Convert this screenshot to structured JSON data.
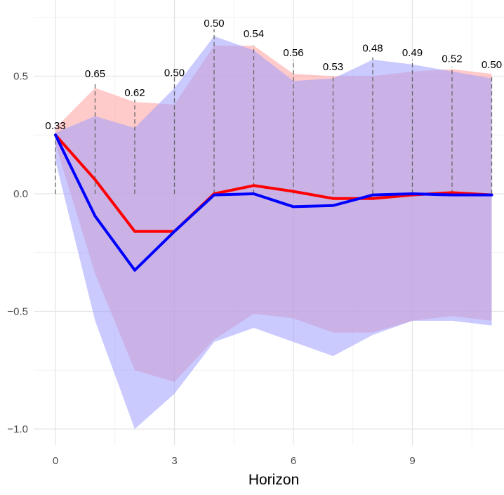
{
  "chart_data": {
    "type": "line",
    "title": "",
    "xlabel": "Horizon",
    "ylabel": "",
    "xlim": [
      -0.55,
      11.3
    ],
    "ylim": [
      -1.05,
      0.76
    ],
    "x_ticks": [
      0,
      3,
      6,
      9
    ],
    "x_tick_labels": [
      "0",
      "3",
      "6",
      "9"
    ],
    "y_ticks": [
      -1.0,
      -0.5,
      0.0,
      0.5
    ],
    "y_tick_labels": [
      "-1.0",
      "-0.5",
      "0.0",
      "0.5"
    ],
    "grid": true,
    "legend": "none",
    "x": [
      0,
      1,
      2,
      3,
      4,
      5,
      6,
      7,
      8,
      9,
      10,
      11
    ],
    "series": [
      {
        "color": "#ff0000",
        "values": [
          0.25,
          0.06,
          -0.16,
          -0.16,
          0.0,
          0.035,
          0.01,
          -0.02,
          -0.02,
          -0.005,
          0.005,
          -0.005
        ],
        "band_upper": [
          0.28,
          0.45,
          0.39,
          0.38,
          0.63,
          0.63,
          0.51,
          0.5,
          0.5,
          0.52,
          0.53,
          0.51
        ],
        "band_lower": [
          0.21,
          -0.34,
          -0.75,
          -0.8,
          -0.62,
          -0.51,
          -0.53,
          -0.59,
          -0.59,
          -0.54,
          -0.52,
          -0.54
        ],
        "band_color": "#ff9f9f"
      },
      {
        "color": "#0000ff",
        "values": [
          0.25,
          -0.095,
          -0.325,
          -0.16,
          -0.005,
          0.0,
          -0.055,
          -0.05,
          -0.005,
          0.0,
          -0.005,
          -0.005
        ],
        "band_upper": [
          0.26,
          0.33,
          0.28,
          0.45,
          0.67,
          0.61,
          0.48,
          0.49,
          0.57,
          0.55,
          0.52,
          0.49
        ],
        "band_lower": [
          0.14,
          -0.54,
          -1.0,
          -0.85,
          -0.63,
          -0.57,
          -0.63,
          -0.69,
          -0.6,
          -0.54,
          -0.54,
          -0.56
        ],
        "band_color": "#9f9fff"
      }
    ],
    "annotations": [
      {
        "x": 0,
        "y_top": 0.25,
        "label_y": 0.275,
        "label": "0.33"
      },
      {
        "x": 1,
        "y_top": 0.47,
        "label_y": 0.495,
        "label": "0.65"
      },
      {
        "x": 2,
        "y_top": 0.4,
        "label_y": 0.415,
        "label": "0.62"
      },
      {
        "x": 3,
        "y_top": 0.5,
        "label_y": 0.5,
        "label": "0.50"
      },
      {
        "x": 4,
        "y_top": 0.7,
        "label_y": 0.71,
        "label": "0.50"
      },
      {
        "x": 5,
        "y_top": 0.63,
        "label_y": 0.665,
        "label": "0.54"
      },
      {
        "x": 6,
        "y_top": 0.57,
        "label_y": 0.585,
        "label": "0.56"
      },
      {
        "x": 7,
        "y_top": 0.5,
        "label_y": 0.525,
        "label": "0.53"
      },
      {
        "x": 8,
        "y_top": 0.58,
        "label_y": 0.605,
        "label": "0.48"
      },
      {
        "x": 9,
        "y_top": 0.57,
        "label_y": 0.585,
        "label": "0.49"
      },
      {
        "x": 10,
        "y_top": 0.54,
        "label_y": 0.56,
        "label": "0.52"
      },
      {
        "x": 11,
        "y_top": 0.5,
        "label_y": 0.535,
        "label": "0.50"
      }
    ]
  }
}
